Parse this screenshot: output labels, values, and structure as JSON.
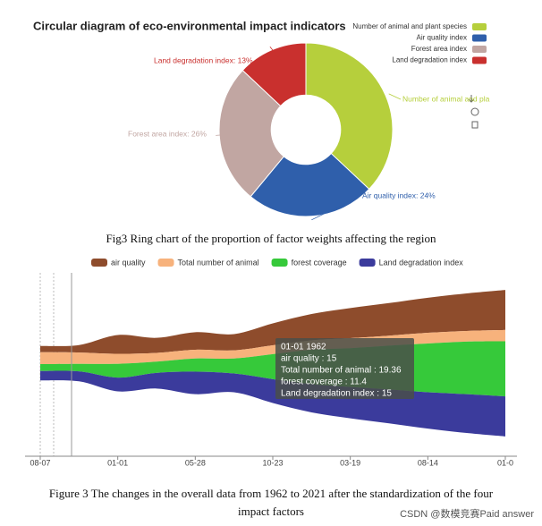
{
  "chart_data": [
    {
      "type": "pie",
      "title": "Circular diagram of eco-environmental impact indicators",
      "categories": [
        "Number of animal and plant species",
        "Air quality index",
        "Forest area index",
        "Land degradation index"
      ],
      "values": [
        37,
        24,
        26,
        13
      ],
      "value_labels": [
        "Number of animal and pla",
        "Air quality index: 24%",
        "Forest area index: 26%",
        "Land degradation index: 13%"
      ],
      "colors": [
        "#b6cf3c",
        "#2f5fab",
        "#c1a6a2",
        "#c9302e"
      ],
      "inner_radius_ratio": 0.4
    },
    {
      "type": "themeriver",
      "categories": [
        "08-07",
        null,
        "01-01",
        null,
        "05-28",
        null,
        "10-23",
        null,
        "03-19",
        null,
        "08-14",
        null,
        "01-0"
      ],
      "series": [
        {
          "name": "air quality",
          "color": "#8e4c2c",
          "values": [
            10,
            12,
            30,
            24,
            28,
            26,
            35,
            42,
            48,
            52,
            56,
            60,
            64
          ]
        },
        {
          "name": "Total number of animal",
          "color": "#f7b27c",
          "values": [
            19,
            18,
            16,
            14,
            14,
            13,
            14,
            15,
            16,
            16,
            17,
            17,
            18
          ]
        },
        {
          "name": "forest coverage",
          "color": "#36c93a",
          "values": [
            11,
            12,
            22,
            18,
            21,
            24,
            40,
            55,
            62,
            70,
            78,
            84,
            88
          ]
        },
        {
          "name": "Land degradation index",
          "color": "#3b3b9c",
          "values": [
            15,
            16,
            22,
            25,
            36,
            30,
            38,
            45,
            50,
            54,
            58,
            62,
            64
          ]
        }
      ],
      "tooltip": {
        "title": "01-01 1962",
        "lines": [
          "air quality : 15",
          "Total number of animal : 19.36",
          "forest coverage : 11.4",
          "Land degradation index : 15"
        ]
      }
    }
  ],
  "captions": [
    "Fig3 Ring chart of the proportion of factor weights affecting the region",
    "Figure 3 The changes in the overall data from 1962 to 2021 after the standardization of the four",
    "impact factors"
  ],
  "watermark": "CSDN @数模竞赛Paid answer"
}
